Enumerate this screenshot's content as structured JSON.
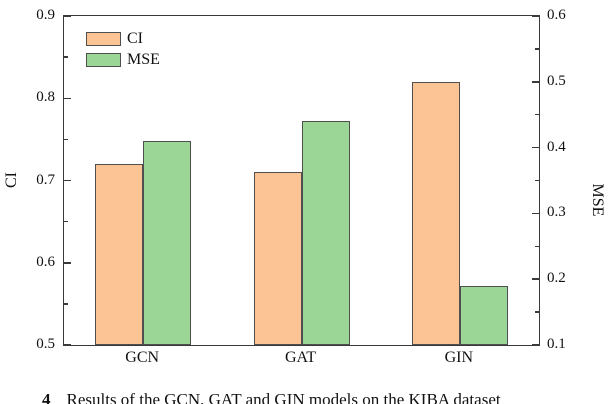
{
  "figure": {
    "caption_number": "4",
    "caption_text": "Results of the GCN, GAT and GIN models on the KIBA dataset"
  },
  "chart_data": {
    "type": "bar",
    "title": "",
    "categories": [
      "GCN",
      "GAT",
      "GIN"
    ],
    "series": [
      {
        "name": "CI",
        "axis": "left",
        "color": "#fcc494",
        "edge_color": "#4f4f4f",
        "values": [
          0.72,
          0.71,
          0.82
        ]
      },
      {
        "name": "MSE",
        "axis": "right",
        "color": "#9bd696",
        "edge_color": "#4f4f4f",
        "values": [
          0.41,
          0.44,
          0.19
        ]
      }
    ],
    "left_axis": {
      "label": "CI",
      "min": 0.5,
      "max": 0.9,
      "major_ticks": [
        0.5,
        0.6,
        0.7,
        0.8,
        0.9
      ],
      "minor_ticks": [
        0.55,
        0.65,
        0.75,
        0.85
      ],
      "decimals": 1
    },
    "right_axis": {
      "label": "MSE",
      "min": 0.1,
      "max": 0.6,
      "major_ticks": [
        0.1,
        0.2,
        0.3,
        0.4,
        0.5,
        0.6
      ],
      "minor_ticks": [
        0.15,
        0.25,
        0.35,
        0.45,
        0.55
      ],
      "decimals": 1
    },
    "legend": {
      "position": "top-left",
      "entries": [
        "CI",
        "MSE"
      ]
    },
    "grid": false,
    "frame_color": "#3a3a3a"
  }
}
